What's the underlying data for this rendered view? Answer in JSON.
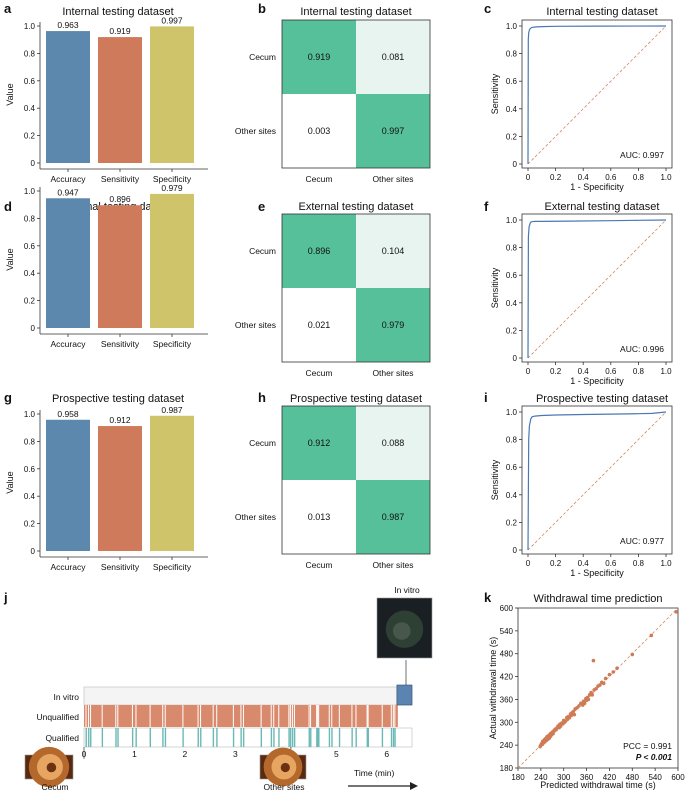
{
  "panels": {
    "a": "a",
    "b": "b",
    "c": "c",
    "d": "d",
    "e": "e",
    "f": "f",
    "g": "g",
    "h": "h",
    "i": "i",
    "j": "j",
    "k": "k"
  },
  "colors": {
    "accuracy": "#5d88ae",
    "sensitivity": "#cf7a5a",
    "specificity": "#cfc46a",
    "cm_dark": "#56c09a",
    "cm_light": "#e8f4f0",
    "cm_white": "#ffffff",
    "roc": "#4a78b0",
    "diag": "#cc8b6e",
    "scatter": "#cf7c56",
    "unqualified": "#d98a6d",
    "qualified": "#6bb9b5",
    "invitro": "#5b84b0"
  },
  "chart_data": [
    {
      "id": "a",
      "type": "bar",
      "title": "Internal testing dataset",
      "categories": [
        "Accuracy",
        "Sensitivity",
        "Specificity"
      ],
      "values": [
        0.963,
        0.919,
        0.997
      ],
      "labels": [
        "0.963",
        "0.919",
        "0.997"
      ],
      "ylabel": "Value",
      "ylim": [
        0,
        1.0
      ],
      "yticks": [
        "0",
        "0.2",
        "0.4",
        "0.6",
        "0.8",
        "1.0"
      ]
    },
    {
      "id": "b",
      "type": "heatmap",
      "title": "Internal testing dataset",
      "rows": [
        "Cecum",
        "Other sites"
      ],
      "cols": [
        "Cecum",
        "Other sites"
      ],
      "values": [
        [
          0.919,
          0.081
        ],
        [
          0.003,
          0.997
        ]
      ],
      "labels": [
        [
          "0.919",
          "0.081"
        ],
        [
          "0.003",
          "0.997"
        ]
      ]
    },
    {
      "id": "c",
      "type": "line",
      "title": "Internal testing dataset",
      "xlabel": "1 - Specificity",
      "ylabel": "Sensitivity",
      "xlim": [
        0,
        1
      ],
      "ylim": [
        0,
        1
      ],
      "ticks": [
        "0",
        "0.2",
        "0.4",
        "0.6",
        "0.8",
        "1.0"
      ],
      "auc": "AUC: 0.997",
      "x": [
        0,
        0.002,
        0.005,
        0.01,
        0.015,
        0.02,
        0.03,
        0.05,
        0.1,
        0.2,
        0.5,
        1.0
      ],
      "y": [
        0,
        0.9,
        0.95,
        0.97,
        0.98,
        0.985,
        0.99,
        0.993,
        0.996,
        0.998,
        0.999,
        1.0
      ]
    },
    {
      "id": "d",
      "type": "bar",
      "title": "External testing dataset",
      "categories": [
        "Accuracy",
        "Sensitivity",
        "Specificity"
      ],
      "values": [
        0.947,
        0.896,
        0.979
      ],
      "labels": [
        "0.947",
        "0.896",
        "0.979"
      ],
      "ylabel": "Value",
      "ylim": [
        0,
        1.0
      ],
      "yticks": [
        "0",
        "0.2",
        "0.4",
        "0.6",
        "0.8",
        "1.0"
      ]
    },
    {
      "id": "e",
      "type": "heatmap",
      "title": "External testing dataset",
      "rows": [
        "Cecum",
        "Other sites"
      ],
      "cols": [
        "Cecum",
        "Other sites"
      ],
      "values": [
        [
          0.896,
          0.104
        ],
        [
          0.021,
          0.979
        ]
      ],
      "labels": [
        [
          "0.896",
          "0.104"
        ],
        [
          "0.021",
          "0.979"
        ]
      ]
    },
    {
      "id": "f",
      "type": "line",
      "title": "External testing dataset",
      "xlabel": "1 - Specificity",
      "ylabel": "Sensitivity",
      "xlim": [
        0,
        1
      ],
      "ylim": [
        0,
        1
      ],
      "ticks": [
        "0",
        "0.2",
        "0.4",
        "0.6",
        "0.8",
        "1.0"
      ],
      "auc": "AUC: 0.996",
      "x": [
        0,
        0.003,
        0.008,
        0.015,
        0.02,
        0.03,
        0.05,
        0.1,
        0.3,
        0.6,
        0.8,
        1.0
      ],
      "y": [
        0,
        0.88,
        0.95,
        0.975,
        0.985,
        0.988,
        0.99,
        0.99,
        0.992,
        0.995,
        0.998,
        1.0
      ]
    },
    {
      "id": "g",
      "type": "bar",
      "title": "Prospective testing dataset",
      "categories": [
        "Accuracy",
        "Sensitivity",
        "Specificity"
      ],
      "values": [
        0.958,
        0.912,
        0.987
      ],
      "labels": [
        "0.958",
        "0.912",
        "0.987"
      ],
      "ylabel": "Value",
      "ylim": [
        0,
        1.0
      ],
      "yticks": [
        "0",
        "0.2",
        "0.4",
        "0.6",
        "0.8",
        "1.0"
      ]
    },
    {
      "id": "h",
      "type": "heatmap",
      "title": "Prospective testing dataset",
      "rows": [
        "Cecum",
        "Other sites"
      ],
      "cols": [
        "Cecum",
        "Other sites"
      ],
      "values": [
        [
          0.912,
          0.088
        ],
        [
          0.013,
          0.987
        ]
      ],
      "labels": [
        [
          "0.912",
          "0.088"
        ],
        [
          "0.013",
          "0.987"
        ]
      ]
    },
    {
      "id": "i",
      "type": "line",
      "title": "Prospective testing dataset",
      "xlabel": "1 - Specificity",
      "ylabel": "Sensitivity",
      "xlim": [
        0,
        1
      ],
      "ylim": [
        0,
        1
      ],
      "ticks": [
        "0",
        "0.2",
        "0.4",
        "0.6",
        "0.8",
        "1.0"
      ],
      "auc": "AUC: 0.977",
      "x": [
        0,
        0.005,
        0.01,
        0.02,
        0.03,
        0.05,
        0.1,
        0.2,
        0.4,
        0.6,
        0.8,
        0.9,
        1.0
      ],
      "y": [
        0,
        0.8,
        0.9,
        0.95,
        0.965,
        0.97,
        0.975,
        0.978,
        0.982,
        0.985,
        0.988,
        0.99,
        1.0
      ]
    },
    {
      "id": "j",
      "type": "timeline",
      "rows": [
        "In vitro",
        "Unqualified",
        "Qualified"
      ],
      "xlabel": "Time (min)",
      "xticks": [
        "0",
        "1",
        "2",
        "3",
        "4",
        "5",
        "6"
      ],
      "xlim": [
        0,
        6.5
      ],
      "invitro_start": 6.22,
      "qualified_times": [
        0.03,
        0.08,
        0.12,
        0.35,
        0.62,
        0.66,
        0.95,
        1.02,
        1.3,
        1.55,
        1.6,
        1.95,
        2.25,
        2.3,
        2.55,
        2.62,
        2.95,
        3.1,
        3.15,
        3.5,
        3.7,
        3.75,
        3.85,
        4.05,
        4.08,
        4.12,
        4.16,
        4.45,
        4.48,
        4.6,
        4.62,
        4.64,
        4.85,
        4.9,
        5.05,
        5.3,
        5.38,
        5.6,
        5.62,
        5.9,
        6.08,
        6.12,
        6.15
      ],
      "annotations": [
        "Cecum",
        "Other sites",
        "In vitro"
      ]
    },
    {
      "id": "k",
      "type": "scatter",
      "title": "Withdrawal time prediction",
      "xlabel": "Predicted withdrawal time (s)",
      "ylabel": "Actual withdrawal time (s)",
      "xlim": [
        180,
        600
      ],
      "ylim": [
        180,
        600
      ],
      "ticks": [
        "180",
        "240",
        "300",
        "360",
        "420",
        "480",
        "540",
        "600"
      ],
      "pcc": "PCC = 0.991",
      "p": "P < 0.001",
      "x": [
        238,
        240,
        242,
        244,
        245,
        246,
        248,
        248,
        250,
        251,
        252,
        253,
        254,
        255,
        256,
        257,
        258,
        259,
        260,
        261,
        262,
        263,
        264,
        265,
        266,
        268,
        270,
        272,
        274,
        275,
        278,
        280,
        282,
        285,
        288,
        290,
        292,
        295,
        298,
        300,
        302,
        305,
        308,
        310,
        312,
        315,
        318,
        320,
        322,
        325,
        328,
        330,
        335,
        340,
        345,
        350,
        352,
        355,
        358,
        360,
        362,
        365,
        368,
        372,
        375,
        378,
        380,
        385,
        390,
        395,
        400,
        405,
        410,
        420,
        430,
        440,
        480,
        530,
        595
      ],
      "y": [
        236,
        240,
        244,
        242,
        250,
        246,
        247,
        252,
        249,
        256,
        251,
        255,
        258,
        253,
        262,
        257,
        260,
        256,
        265,
        262,
        258,
        266,
        262,
        270,
        264,
        268,
        274,
        270,
        276,
        279,
        282,
        280,
        285,
        290,
        286,
        295,
        290,
        298,
        296,
        305,
        300,
        303,
        312,
        308,
        315,
        312,
        322,
        318,
        325,
        328,
        320,
        335,
        338,
        343,
        350,
        345,
        355,
        350,
        362,
        358,
        365,
        360,
        372,
        378,
        372,
        462,
        385,
        388,
        395,
        398,
        405,
        402,
        415,
        425,
        432,
        442,
        478,
        528,
        590
      ]
    }
  ]
}
